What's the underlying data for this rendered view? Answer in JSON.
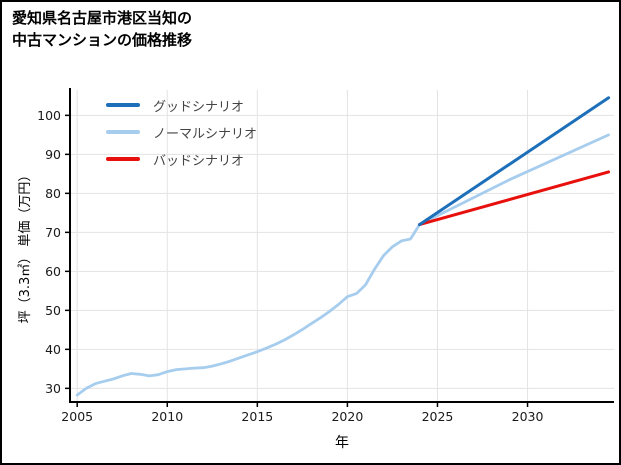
{
  "header": {
    "title_line1": "愛知県名古屋市港区当知の",
    "title_line2": "中古マンションの価格推移"
  },
  "chart_data": {
    "type": "line",
    "title": "愛知県名古屋市港区当知の中古マンションの価格推移",
    "xlabel": "年",
    "ylabel": "坪（3.3㎡） 単価（万円）",
    "xlim": [
      2004.6,
      2034.8
    ],
    "ylim": [
      26.5,
      106.5
    ],
    "xticks": [
      2005,
      2010,
      2015,
      2020,
      2025,
      2030
    ],
    "yticks": [
      30,
      40,
      50,
      60,
      70,
      80,
      90,
      100
    ],
    "grid": true,
    "legend_position": "top-left",
    "colors": {
      "grid": "#e3e3e3",
      "axis": "#000000"
    },
    "series": [
      {
        "name": "グッドシナリオ",
        "color": "#1c6fb8",
        "x": [
          2024,
          2034.5
        ],
        "y": [
          72,
          104.5
        ]
      },
      {
        "name": "ノーマルシナリオ",
        "color": "#a7cdee",
        "x": [
          2005,
          2005.5,
          2006,
          2006.5,
          2007,
          2007.5,
          2008,
          2008.5,
          2009,
          2009.5,
          2010,
          2010.5,
          2011,
          2011.5,
          2012,
          2012.5,
          2013,
          2013.5,
          2014,
          2014.5,
          2015,
          2015.5,
          2016,
          2016.5,
          2017,
          2017.5,
          2018,
          2018.5,
          2019,
          2019.5,
          2020,
          2020.5,
          2021,
          2021.5,
          2022,
          2022.5,
          2023,
          2023.5,
          2024,
          2029,
          2034.5
        ],
        "y": [
          28.3,
          30.0,
          31.2,
          31.8,
          32.4,
          33.2,
          33.8,
          33.6,
          33.2,
          33.5,
          34.3,
          34.8,
          35.0,
          35.2,
          35.3,
          35.7,
          36.3,
          37.0,
          37.8,
          38.6,
          39.4,
          40.3,
          41.3,
          42.4,
          43.7,
          45.1,
          46.6,
          48.1,
          49.7,
          51.5,
          53.5,
          54.3,
          56.5,
          60.5,
          64.0,
          66.3,
          67.8,
          68.3,
          72.0,
          83.5,
          95.0
        ]
      },
      {
        "name": "バッドシナリオ",
        "color": "#e8100c",
        "x": [
          2024,
          2034.5
        ],
        "y": [
          72,
          85.5
        ]
      }
    ]
  }
}
